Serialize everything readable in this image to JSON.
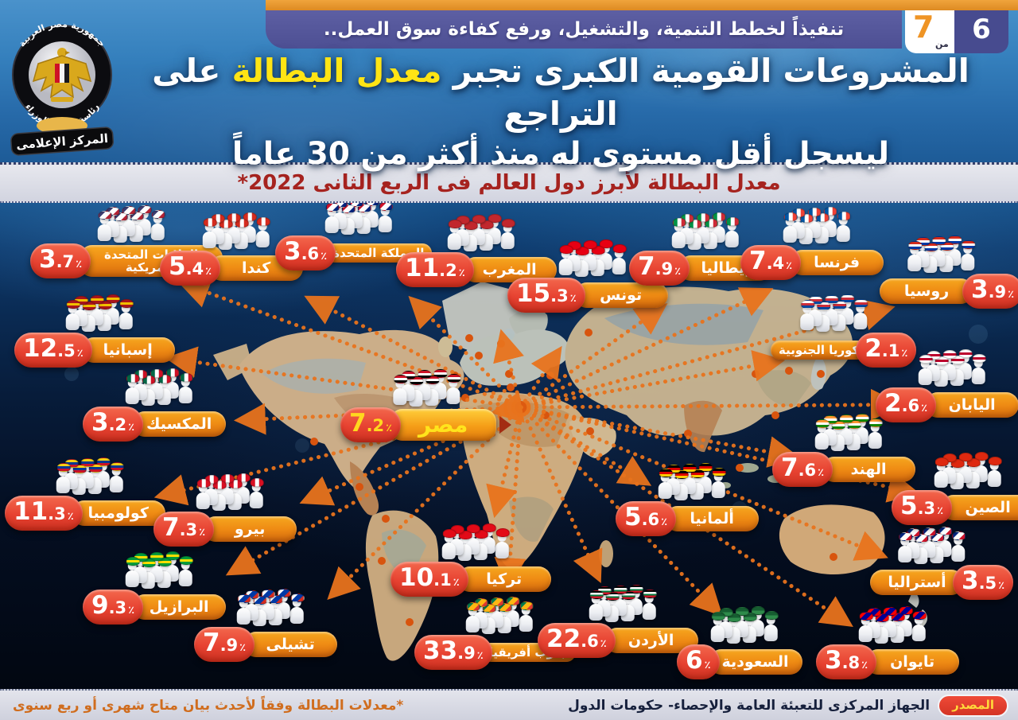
{
  "page_indicator": {
    "current": "6",
    "of": "من",
    "total": "7"
  },
  "top_banner": "تنفيذاً لخطط التنمية، والتشغيل، ورفع كفاءة سوق العمل..",
  "title": {
    "line1_pre": "المشروعات القومية الكبرى تجبر ",
    "line1_highlight": "معدل البطالة",
    "line1_post": " على التراجع",
    "line2": "ليسجل أقل مستوى له منذ أكثر من 30 عاماً"
  },
  "subtitle": "معدل البطالة لأبرز دول العالم فى الربع الثانى 2022*",
  "logo": {
    "ring_top": "جمهورية مصر العربية",
    "ring_bottom": "رئاسة مجلس الوزراء",
    "banner": "المركز الإعلامى"
  },
  "footer": {
    "note": "*معدلات البطالة وفقاً لأحدث بيان متاح شهرى أو ربع سنوى",
    "source_label": "المصدر",
    "source_text": "الجهاز المركزى للتعبئة العامة والإحصاء- حكومات الدول"
  },
  "colors": {
    "accent_orange": "#ED8A15",
    "badge_red": "#E74231",
    "banner_purple": "#56589C",
    "title_highlight": "#FFE414",
    "subtitle_red": "#A6231F",
    "connector_orange": "#E8731D"
  },
  "chart_data": {
    "type": "map",
    "title": "معدل البطالة لأبرز دول العالم فى الربع الثانى 2022",
    "unit": "%",
    "highlight_country": "مصر",
    "countries": [
      {
        "id": "usa",
        "name": "الولايات المتحدة الأمريكية",
        "value": "3.7",
        "flag": [
          "#3C3B6E",
          "#FFFFFF",
          "#B22234"
        ],
        "flag_dir": 135
      },
      {
        "id": "canada",
        "name": "كندا",
        "value": "5.4",
        "flag": [
          "#D52B1E",
          "#FFFFFF",
          "#D52B1E"
        ],
        "flag_dir": 90
      },
      {
        "id": "uk",
        "name": "المملكة المتحدة",
        "value": "3.6",
        "flag": [
          "#CF142B",
          "#FFFFFF",
          "#00247D"
        ],
        "flag_dir": 135
      },
      {
        "id": "morocco",
        "name": "المغرب",
        "value": "11.2",
        "flag": [
          "#C1272D"
        ],
        "flag_dir": 180
      },
      {
        "id": "tunisia",
        "name": "تونس",
        "value": "15.3",
        "flag": [
          "#E70013"
        ],
        "flag_dir": 180
      },
      {
        "id": "italy",
        "name": "إيطاليا",
        "value": "7.9",
        "flag": [
          "#009246",
          "#FFFFFF",
          "#CE2B37"
        ],
        "flag_dir": 90
      },
      {
        "id": "france",
        "name": "فرنسا",
        "value": "7.4",
        "flag": [
          "#0055A4",
          "#FFFFFF",
          "#EF4135"
        ],
        "flag_dir": 90
      },
      {
        "id": "russia",
        "name": "روسيا",
        "value": "3.9",
        "flag": [
          "#D52B1E",
          "#FFFFFF",
          "#0039A6"
        ],
        "flag_dir": 180
      },
      {
        "id": "spain",
        "name": "إسبانيا",
        "value": "12.5",
        "flag": [
          "#AA151B",
          "#F1BF00",
          "#AA151B"
        ],
        "flag_dir": 180
      },
      {
        "id": "south_korea",
        "name": "كوريا الجنوبية",
        "value": "2.1",
        "flag": [
          "#FFFFFF",
          "#CD2E3A",
          "#0047A0"
        ],
        "flag_dir": 180
      },
      {
        "id": "japan",
        "name": "اليابان",
        "value": "2.6",
        "flag": [
          "#FFFFFF",
          "#BC002D",
          "#FFFFFF"
        ],
        "flag_dir": 180
      },
      {
        "id": "mexico",
        "name": "المكسيك",
        "value": "3.2",
        "flag": [
          "#006847",
          "#FFFFFF",
          "#CE1126"
        ],
        "flag_dir": 90
      },
      {
        "id": "egypt",
        "name": "مصر",
        "value": "7.2",
        "flag": [
          "#CE1126",
          "#FFFFFF",
          "#000000"
        ],
        "flag_dir": 180
      },
      {
        "id": "india",
        "name": "الهند",
        "value": "7.6",
        "flag": [
          "#FF9933",
          "#FFFFFF",
          "#138808"
        ],
        "flag_dir": 180
      },
      {
        "id": "china",
        "name": "الصين",
        "value": "5.3",
        "flag": [
          "#DE2910"
        ],
        "flag_dir": 180
      },
      {
        "id": "colombia",
        "name": "كولومبيا",
        "value": "11.3",
        "flag": [
          "#FCD116",
          "#003893",
          "#CE1126"
        ],
        "flag_dir": 180
      },
      {
        "id": "peru",
        "name": "بيرو",
        "value": "7.3",
        "flag": [
          "#D91023",
          "#FFFFFF",
          "#D91023"
        ],
        "flag_dir": 90
      },
      {
        "id": "germany",
        "name": "ألمانيا",
        "value": "5.6",
        "flag": [
          "#000000",
          "#DD0000",
          "#FFCE00"
        ],
        "flag_dir": 180
      },
      {
        "id": "australia",
        "name": "أستراليا",
        "value": "3.5",
        "flag": [
          "#00247D",
          "#FFFFFF",
          "#CF142B"
        ],
        "flag_dir": 135
      },
      {
        "id": "brazil",
        "name": "البرازيل",
        "value": "9.3",
        "flag": [
          "#009B3A",
          "#FFDF00",
          "#009B3A"
        ],
        "flag_dir": 180
      },
      {
        "id": "turkey",
        "name": "تركيا",
        "value": "10.1",
        "flag": [
          "#E30A17"
        ],
        "flag_dir": 180
      },
      {
        "id": "chile",
        "name": "تشيلى",
        "value": "7.9",
        "flag": [
          "#FFFFFF",
          "#0039A6",
          "#D52B1E"
        ],
        "flag_dir": 135
      },
      {
        "id": "south_africa",
        "name": "جنوب أفريقيا",
        "value": "33.9",
        "flag": [
          "#007A4D",
          "#FFB612",
          "#DE3831"
        ],
        "flag_dir": 135
      },
      {
        "id": "jordan",
        "name": "الأردن",
        "value": "22.6",
        "flag": [
          "#000000",
          "#FFFFFF",
          "#007A3D",
          "#CE1126"
        ],
        "flag_dir": 180
      },
      {
        "id": "saudi_arabia",
        "name": "السعودية",
        "value": "6",
        "flag": [
          "#165D31",
          "#2E8B4A"
        ],
        "flag_dir": 180
      },
      {
        "id": "taiwan",
        "name": "تايوان",
        "value": "3.8",
        "flag": [
          "#FE0000",
          "#000095",
          "#FE0000"
        ],
        "flag_dir": 135
      }
    ]
  }
}
